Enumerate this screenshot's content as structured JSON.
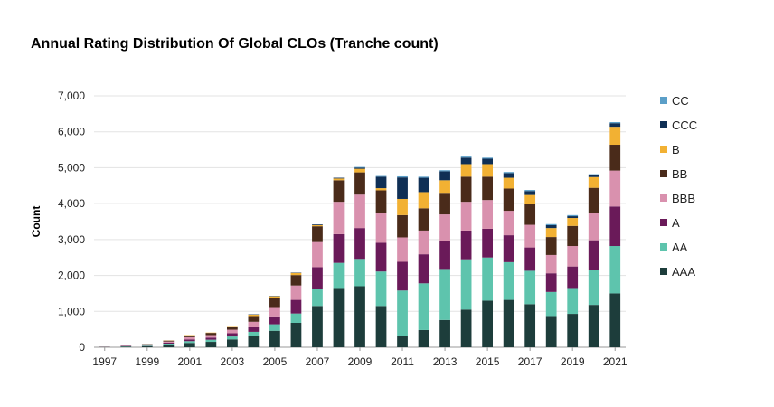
{
  "chart_data": {
    "type": "bar",
    "stacked": true,
    "title": "Annual Rating Distribution Of Global CLOs (Tranche count)",
    "xlabel": "",
    "ylabel": "Count",
    "ylim": [
      0,
      7000
    ],
    "yticks": [
      0,
      1000,
      2000,
      3000,
      4000,
      5000,
      6000,
      7000
    ],
    "ytick_labels": [
      "0",
      "1,000",
      "2,000",
      "3,000",
      "4,000",
      "5,000",
      "6,000",
      "7,000"
    ],
    "categories": [
      "1997",
      "1998",
      "1999",
      "2000",
      "2001",
      "2002",
      "2003",
      "2004",
      "2005",
      "2006",
      "2007",
      "2008",
      "2009",
      "2010",
      "2011",
      "2012",
      "2013",
      "2014",
      "2015",
      "2016",
      "2017",
      "2018",
      "2019",
      "2020",
      "2021"
    ],
    "xtick_labels": [
      "1997",
      "1999",
      "2001",
      "2003",
      "2005",
      "2007",
      "2009",
      "2011",
      "2013",
      "2015",
      "2017",
      "2019",
      "2021"
    ],
    "grid": "horizontal",
    "legend_position": "right",
    "series": [
      {
        "name": "AAA",
        "color": "#1d3d3b",
        "values": [
          5,
          20,
          30,
          70,
          120,
          150,
          220,
          320,
          460,
          680,
          1150,
          1650,
          1700,
          1150,
          310,
          480,
          760,
          1050,
          1300,
          1320,
          1200,
          870,
          930,
          1180,
          1500
        ]
      },
      {
        "name": "AA",
        "color": "#5ec4ad",
        "values": [
          3,
          10,
          15,
          30,
          50,
          60,
          80,
          110,
          180,
          260,
          480,
          700,
          760,
          960,
          1270,
          1300,
          1420,
          1400,
          1200,
          1050,
          930,
          670,
          720,
          960,
          1320
        ]
      },
      {
        "name": "A",
        "color": "#6a1a59",
        "values": [
          3,
          10,
          15,
          30,
          50,
          60,
          90,
          130,
          220,
          380,
          600,
          800,
          860,
          800,
          800,
          810,
          780,
          800,
          800,
          750,
          650,
          520,
          600,
          840,
          1100
        ]
      },
      {
        "name": "BBB",
        "color": "#d991ae",
        "values": [
          3,
          10,
          15,
          30,
          60,
          70,
          100,
          150,
          260,
          400,
          700,
          900,
          930,
          840,
          680,
          660,
          740,
          800,
          800,
          680,
          630,
          510,
          570,
          760,
          1000
        ]
      },
      {
        "name": "BB",
        "color": "#4a2b1a",
        "values": [
          3,
          8,
          10,
          25,
          50,
          60,
          80,
          160,
          260,
          290,
          440,
          600,
          620,
          620,
          620,
          620,
          600,
          700,
          650,
          620,
          580,
          500,
          560,
          700,
          720
        ]
      },
      {
        "name": "B",
        "color": "#f2b133",
        "values": [
          0,
          0,
          0,
          5,
          10,
          10,
          20,
          40,
          40,
          60,
          30,
          50,
          100,
          60,
          450,
          450,
          350,
          350,
          350,
          300,
          250,
          250,
          220,
          300,
          500
        ]
      },
      {
        "name": "CCC",
        "color": "#0f2f55",
        "values": [
          0,
          0,
          0,
          0,
          0,
          0,
          0,
          10,
          10,
          10,
          20,
          20,
          30,
          320,
          600,
          400,
          250,
          180,
          150,
          130,
          110,
          80,
          50,
          50,
          100
        ]
      },
      {
        "name": "CC",
        "color": "#5b9fc8",
        "values": [
          0,
          0,
          0,
          0,
          0,
          0,
          0,
          0,
          0,
          0,
          0,
          0,
          20,
          20,
          30,
          30,
          30,
          30,
          30,
          30,
          30,
          30,
          30,
          30,
          30
        ]
      }
    ]
  }
}
